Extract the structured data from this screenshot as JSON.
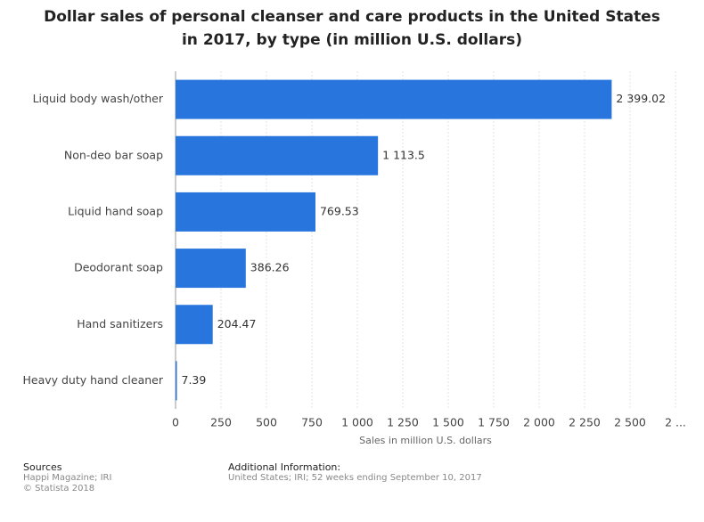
{
  "chart_data": {
    "type": "bar",
    "orientation": "horizontal",
    "title": "Dollar sales of personal cleanser and care products in the United States in 2017, by type (in million U.S. dollars)",
    "x_label": "Sales in million U.S. dollars",
    "categories": [
      "Liquid body wash/other",
      "Non-deo bar soap",
      "Liquid hand soap",
      "Deodorant soap",
      "Hand sanitizers",
      "Heavy duty hand cleaner"
    ],
    "values": [
      2399.02,
      1113.5,
      769.53,
      386.26,
      204.47,
      7.39
    ],
    "value_labels": [
      "2 399.02",
      "1 113.5",
      "769.53",
      "386.26",
      "204.47",
      "7.39"
    ],
    "color": "#2876dd",
    "xlim": [
      0,
      2750
    ],
    "xticks": [
      0,
      250,
      500,
      750,
      {
        "value": 1000,
        "label": "1 000"
      },
      {
        "value": 1250,
        "label": "1 250"
      },
      {
        "value": 1500,
        "label": "1 500"
      },
      {
        "value": 1750,
        "label": "1 750"
      },
      {
        "value": 2000,
        "label": "2 000"
      },
      {
        "value": 2250,
        "label": "2 250"
      },
      {
        "value": 2500,
        "label": "2 500"
      },
      {
        "value": 2750,
        "label": "2 ..."
      }
    ],
    "grid": true
  },
  "footer": {
    "sources_title": "Sources",
    "sources": [
      "Happi Magazine; IRI",
      "© Statista 2018"
    ],
    "info_title": "Additional Information:",
    "info": "United States; IRI; 52 weeks ending September 10, 2017"
  }
}
